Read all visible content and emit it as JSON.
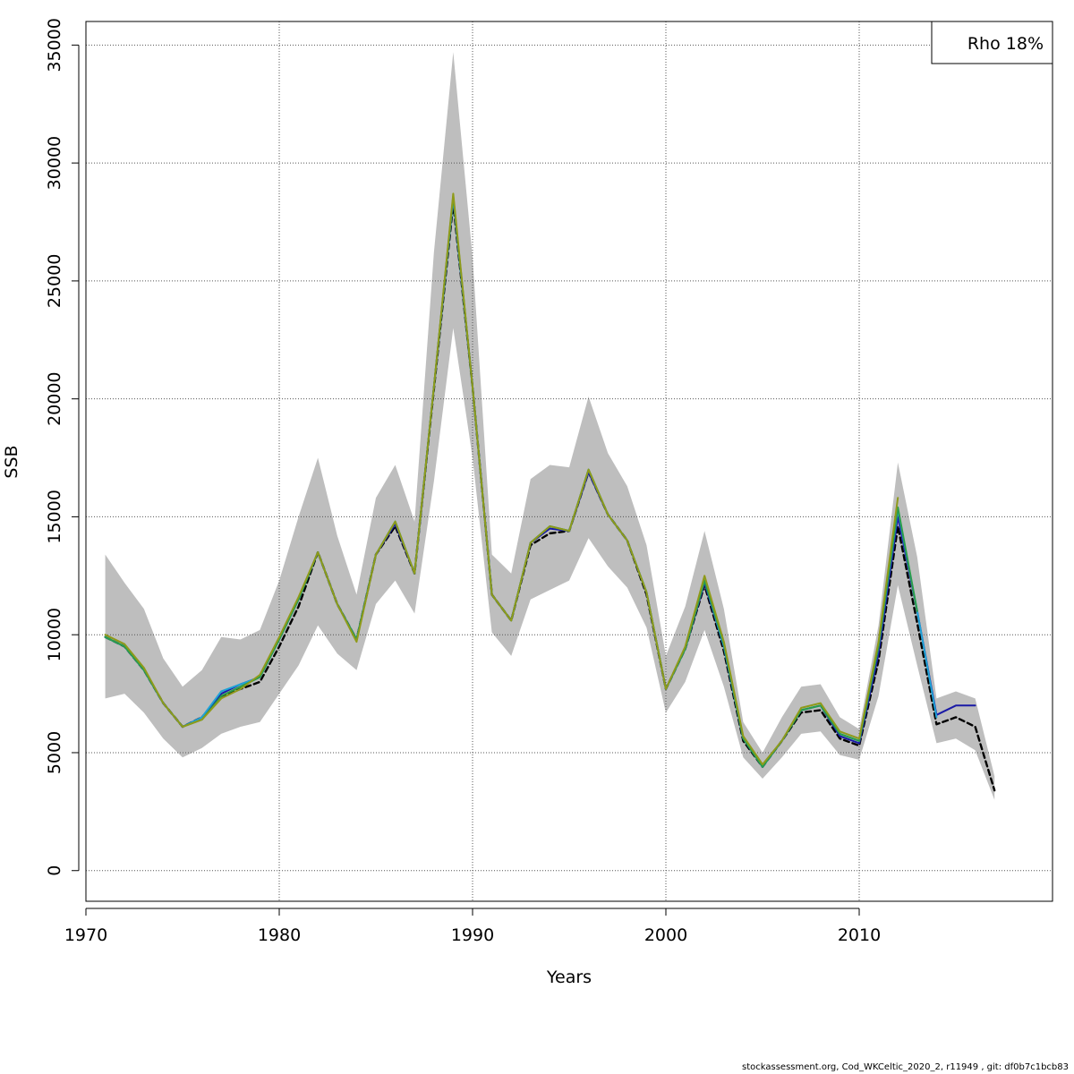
{
  "chart_data": {
    "type": "line",
    "xlabel": "Years",
    "ylabel": "SSB",
    "xlim": [
      1970,
      2020
    ],
    "ylim": [
      -1300,
      36000
    ],
    "x_ticks": [
      1970,
      1980,
      1990,
      2000,
      2010
    ],
    "y_ticks": [
      0,
      5000,
      10000,
      15000,
      20000,
      25000,
      30000,
      35000
    ],
    "grid": true,
    "legend": {
      "position": "top-right",
      "text": "Rho 18%"
    },
    "confidence_band": {
      "color": "#bebebe",
      "years": [
        1971,
        1972,
        1973,
        1974,
        1975,
        1976,
        1977,
        1978,
        1979,
        1980,
        1981,
        1982,
        1983,
        1984,
        1985,
        1986,
        1987,
        1988,
        1989,
        1990,
        1991,
        1992,
        1993,
        1994,
        1995,
        1996,
        1997,
        1998,
        1999,
        2000,
        2001,
        2002,
        2003,
        2004,
        2005,
        2006,
        2007,
        2008,
        2009,
        2010,
        2011,
        2012,
        2013,
        2014,
        2015,
        2016,
        2017
      ],
      "lower": [
        7300,
        7500,
        6700,
        5600,
        4800,
        5200,
        5800,
        6100,
        6300,
        7500,
        8700,
        10400,
        9200,
        8500,
        11300,
        12300,
        10900,
        16500,
        23000,
        17500,
        10100,
        9100,
        11500,
        11900,
        12300,
        14100,
        12900,
        12000,
        10300,
        6700,
        8000,
        10200,
        7800,
        4800,
        3900,
        4800,
        5800,
        5900,
        4900,
        4700,
        7400,
        12100,
        8700,
        5400,
        5600,
        5100,
        3000
      ],
      "upper": [
        13400,
        12200,
        11100,
        9000,
        7800,
        8500,
        9900,
        9800,
        10200,
        12300,
        15000,
        17500,
        14200,
        11700,
        15800,
        17200,
        14800,
        26200,
        34700,
        26000,
        13400,
        12600,
        16600,
        17200,
        17100,
        20100,
        17700,
        16300,
        13800,
        9100,
        11200,
        14400,
        11100,
        6300,
        5000,
        6500,
        7800,
        7900,
        6500,
        6000,
        10400,
        17300,
        13300,
        7300,
        7600,
        7300,
        4000
      ]
    },
    "series": [
      {
        "color": "#000000",
        "dashed": true,
        "x": [
          1971,
          1972,
          1973,
          1974,
          1975,
          1976,
          1977,
          1978,
          1979,
          1980,
          1981,
          1982,
          1983,
          1984,
          1985,
          1986,
          1987,
          1988,
          1989,
          1990,
          1991,
          1992,
          1993,
          1994,
          1995,
          1996,
          1997,
          1998,
          1999,
          2000,
          2001,
          2002,
          2003,
          2004,
          2005,
          2006,
          2007,
          2008,
          2009,
          2010,
          2011,
          2012,
          2013,
          2014,
          2015,
          2016,
          2017
        ],
        "y": [
          9900,
          9500,
          8500,
          7100,
          6100,
          6500,
          7400,
          7700,
          8000,
          9500,
          11200,
          13500,
          11300,
          9800,
          13400,
          14600,
          12600,
          20400,
          28300,
          20500,
          11700,
          10600,
          13800,
          14300,
          14400,
          16900,
          15100,
          14000,
          11700,
          7700,
          9400,
          12100,
          9300,
          5500,
          4400,
          5500,
          6700,
          6800,
          5600,
          5300,
          8900,
          14600,
          10500,
          6200,
          6500,
          6100,
          3400
        ]
      },
      {
        "color": "#1a1aa6",
        "dashed": false,
        "x": [
          1971,
          1972,
          1973,
          1974,
          1975,
          1976,
          1977,
          1978,
          1979,
          1980,
          1981,
          1982,
          1983,
          1984,
          1985,
          1986,
          1987,
          1988,
          1989,
          1990,
          1991,
          1992,
          1993,
          1994,
          1995,
          1996,
          1997,
          1998,
          1999,
          2000,
          2001,
          2002,
          2003,
          2004,
          2005,
          2006,
          2007,
          2008,
          2009,
          2010,
          2011,
          2012,
          2013,
          2014,
          2015,
          2016
        ],
        "y": [
          9900,
          9500,
          8500,
          7100,
          6100,
          6500,
          7500,
          7900,
          8200,
          9800,
          11500,
          13500,
          11300,
          9800,
          13400,
          14700,
          12600,
          20500,
          28500,
          20500,
          11700,
          10600,
          13900,
          14500,
          14400,
          16900,
          15100,
          14000,
          11800,
          7700,
          9400,
          12200,
          9500,
          5600,
          4400,
          5500,
          6800,
          7000,
          5700,
          5400,
          9200,
          15000,
          11000,
          6600,
          7000,
          7000
        ]
      },
      {
        "color": "#1fa3d6",
        "dashed": false,
        "x": [
          1971,
          1972,
          1973,
          1974,
          1975,
          1976,
          1977,
          1978,
          1979,
          1980,
          1981,
          1982,
          1983,
          1984,
          1985,
          1986,
          1987,
          1988,
          1989,
          1990,
          1991,
          1992,
          1993,
          1994,
          1995,
          1996,
          1997,
          1998,
          1999,
          2000,
          2001,
          2002,
          2003,
          2004,
          2005,
          2006,
          2007,
          2008,
          2009,
          2010,
          2011,
          2012,
          2013,
          2014
        ],
        "y": [
          9900,
          9500,
          8500,
          7100,
          6100,
          6500,
          7600,
          7900,
          8200,
          9800,
          11500,
          13500,
          11300,
          9800,
          13400,
          14800,
          12600,
          20500,
          28500,
          20500,
          11700,
          10600,
          13900,
          14600,
          14400,
          17000,
          15100,
          14000,
          11800,
          7700,
          9400,
          12300,
          9500,
          5600,
          4400,
          5500,
          6800,
          7000,
          5800,
          5500,
          9500,
          15300,
          11000,
          6500
        ]
      },
      {
        "color": "#2a9d4a",
        "dashed": false,
        "x": [
          1971,
          1972,
          1973,
          1974,
          1975,
          1976,
          1977,
          1978,
          1979,
          1980,
          1981,
          1982,
          1983,
          1984,
          1985,
          1986,
          1987,
          1988,
          1989,
          1990,
          1991,
          1992,
          1993,
          1994,
          1995,
          1996,
          1997,
          1998,
          1999,
          2000,
          2001,
          2002,
          2003,
          2004,
          2005,
          2006,
          2007,
          2008,
          2009,
          2010,
          2011,
          2012,
          2013
        ],
        "y": [
          9900,
          9500,
          8500,
          7100,
          6100,
          6400,
          7400,
          7800,
          8200,
          9800,
          11500,
          13500,
          11300,
          9800,
          13400,
          14800,
          12600,
          20500,
          28600,
          20500,
          11700,
          10600,
          13900,
          14600,
          14400,
          17000,
          15100,
          14000,
          11800,
          7700,
          9400,
          12300,
          9600,
          5600,
          4400,
          5500,
          6800,
          7000,
          5800,
          5500,
          9500,
          15400,
          11000
        ]
      },
      {
        "color": "#8f9a1a",
        "dashed": false,
        "x": [
          1971,
          1972,
          1973,
          1974,
          1975,
          1976,
          1977,
          1978,
          1979,
          1980,
          1981,
          1982,
          1983,
          1984,
          1985,
          1986,
          1987,
          1988,
          1989,
          1990,
          1991,
          1992,
          1993,
          1994,
          1995,
          1996,
          1997,
          1998,
          1999,
          2000,
          2001,
          2002,
          2003,
          2004,
          2005,
          2006,
          2007,
          2008,
          2009,
          2010,
          2011,
          2012
        ],
        "y": [
          10000,
          9600,
          8600,
          7100,
          6100,
          6400,
          7300,
          7700,
          8300,
          9900,
          11600,
          13500,
          11300,
          9700,
          13400,
          14800,
          12600,
          20500,
          28700,
          20500,
          11700,
          10600,
          13900,
          14600,
          14400,
          17000,
          15100,
          14000,
          11800,
          7700,
          9500,
          12500,
          9700,
          5700,
          4500,
          5500,
          6900,
          7100,
          5900,
          5600,
          9700,
          15800
        ]
      }
    ]
  },
  "footer": {
    "text": "stockassessment.org, Cod_WKCeltic_2020_2, r11949 , git: df0b7c1bcb83"
  }
}
